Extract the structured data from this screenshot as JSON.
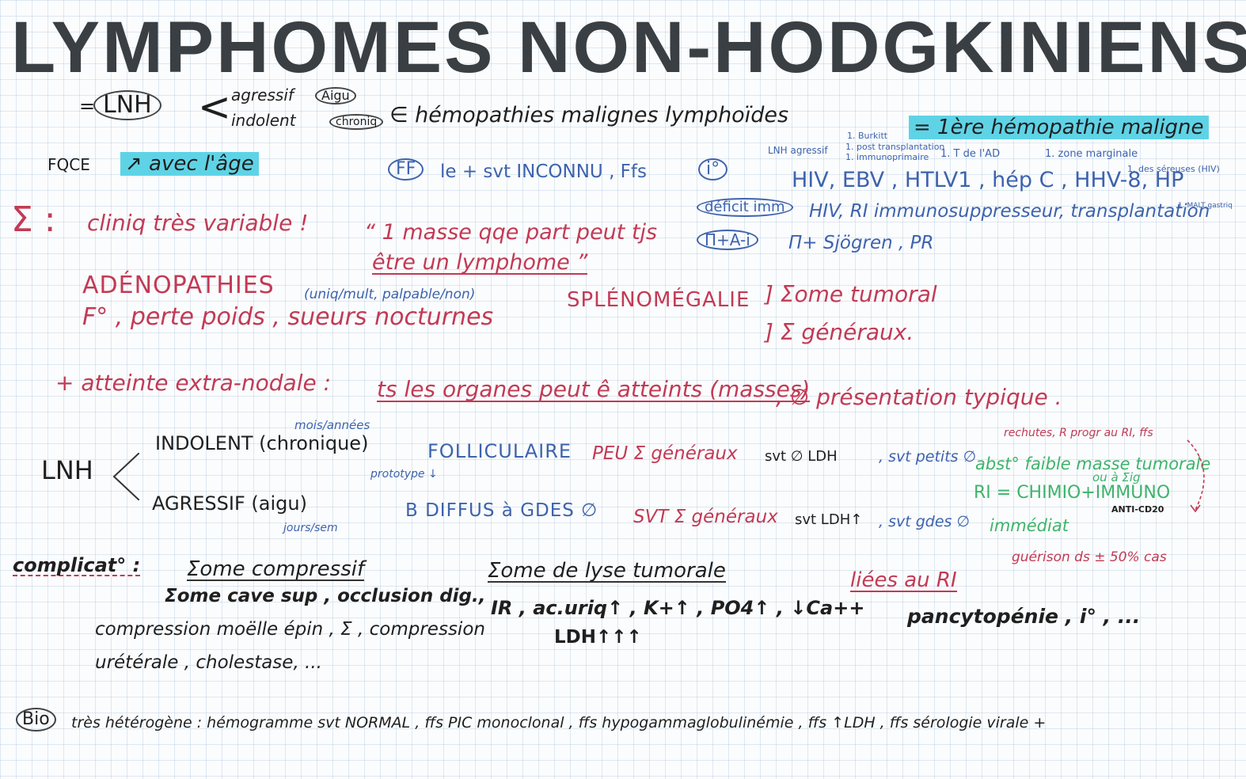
{
  "title": "LYMPHOMES NON-HODGKINIENS",
  "intro": {
    "eq": "=",
    "lnh": "LNH",
    "lt": "<",
    "agressif": "agressif",
    "aigu": "Aigu",
    "indolent": "indolent",
    "chronique": "chroniq",
    "appartenance": "∈ hémopathies malignes lymphoïdes",
    "note_burkitt": "1. Burkitt",
    "note_post": "1. post transplantation",
    "note_immuno": "1. immunoprimaire",
    "note_lnh_agressif": "LNH agressif",
    "first_hemopath": "= 1ère hémopathie maligne",
    "note_tde": "1. T de l'AD",
    "note_zone": "1. zone marginale"
  },
  "fqce": {
    "label": "FQCE",
    "value": "↗ avec l'âge"
  },
  "ff": {
    "label": "FF",
    "text": "le + svt INCONNU , Ffs",
    "infect_label": "i°",
    "infect_text": "HIV, EBV , HTLV1 , hép C , HHV-8, HP",
    "note_sereuses": "1. des séreuses (HIV)",
    "note_malt": "1. MALT gastriq",
    "deficit_label": "déficit imm",
    "deficit_text": "HIV, RI immunosuppresseur, transplantation",
    "ai_label": "Π+A-i",
    "ai_text": "Π+ Sjögren , PR"
  },
  "clinique": {
    "sigma": "Σ :",
    "text": "cliniq très variable !",
    "quote1": "“ 1 masse qqe part peut tjs",
    "quote2": "être un lymphome ”",
    "adeno": "ADÉNOPATHIES",
    "adeno_note": "(uniq/mult, palpable/non)",
    "spleno": "SPLÉNOMÉGALIE",
    "tumoral": "] Σome tumoral",
    "general_signs": "F° , perte poids , sueurs nocturnes",
    "generaux": "] Σ généraux.",
    "extra_prefix": "+ atteinte extra-nodale :",
    "extra_ul": "ts les organes peut ê atteints (masses)",
    "extra_suffix": ", ∅ présentation typique ."
  },
  "types": {
    "lnh": "LNH",
    "lt": "<",
    "mois": "mois/années",
    "jours": "jours/sem",
    "prototype": "prototype ↓",
    "indolent": {
      "label": "INDOLENT (chronique)",
      "type": "FOLLICULAIRE",
      "signs": "PEU Σ généraux",
      "ldh": "svt ∅ LDH",
      "cells": ", svt petits ∅"
    },
    "agressif": {
      "label": "AGRESSIF (aigu)",
      "type": "B DIFFUS à GDES ∅",
      "signs": "SVT Σ généraux",
      "ldh": "svt LDH↑",
      "cells": ", svt gdes ∅"
    },
    "green1": "abst° faible masse tumorale",
    "green_eig": "ou à Σig",
    "green2": "RI = CHIMIO+IMMUNO",
    "anti_cd20": "ANTI-CD20",
    "green3": "immédiat",
    "rechute": "rechutes, R progr au RI, ffs",
    "guerison": "guérison ds ± 50% cas"
  },
  "complications": {
    "label": "complicat° :",
    "comp_title": "Σome compressif",
    "comp_l1": "Σome cave sup , occlusion dig.,",
    "comp_l2": "compression moëlle épin , Σ , compression",
    "comp_l3": "urétérale , cholestase, ...",
    "lyse_title": "Σome de lyse tumorale",
    "lyse_l1": "IR , ac.uriq↑ , K+↑ , PO4↑ , ↓Ca++",
    "lyse_l2": "LDH↑↑↑",
    "ri_title": "liées au RI",
    "ri_l1": "pancytopénie , i° , ..."
  },
  "bio": {
    "label": "Bio",
    "text": "très hétérogène : hémogramme svt NORMAL , ffs PIC monoclonal , ffs hypogammaglobulinémie , ffs ↑LDH , ffs sérologie virale +"
  }
}
